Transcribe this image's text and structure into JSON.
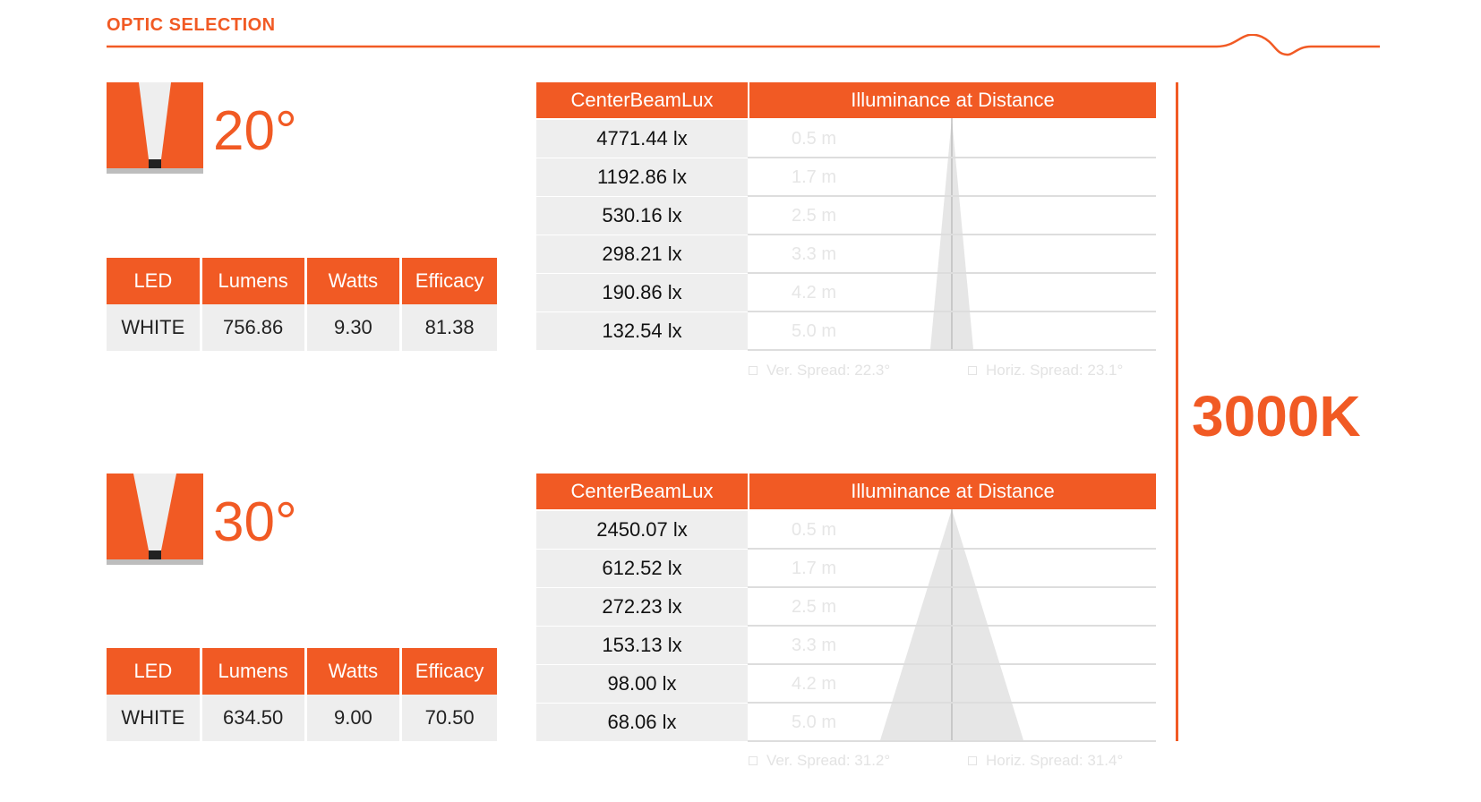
{
  "page_title": "OPTIC SELECTION",
  "cct": "3000K",
  "accent_color": "#f15a24",
  "optics": [
    {
      "beam_angle": "20°",
      "spec": {
        "headers": [
          "LED",
          "Lumens",
          "Watts",
          "Efficacy"
        ],
        "row": [
          "WHITE",
          "756.86",
          "9.30",
          "81.38"
        ]
      },
      "lux_header": "CenterBeamLux",
      "dist_header": "Illuminance at Distance",
      "rows": [
        {
          "lux": "4771.44 lx",
          "distance": "0.5 m"
        },
        {
          "lux": "1192.86 lx",
          "distance": "1.7 m"
        },
        {
          "lux": "530.16 lx",
          "distance": "2.5 m"
        },
        {
          "lux": "298.21 lx",
          "distance": "3.3 m"
        },
        {
          "lux": "190.86  lx",
          "distance": "4.2 m"
        },
        {
          "lux": "132.54 lx",
          "distance": "5.0 m"
        }
      ],
      "ver_spread": "Ver. Spread: 22.3°",
      "horiz_spread": "Horiz. Spread: 23.1°"
    },
    {
      "beam_angle": "30°",
      "spec": {
        "headers": [
          "LED",
          "Lumens",
          "Watts",
          "Efficacy"
        ],
        "row": [
          "WHITE",
          "634.50",
          "9.00",
          "70.50"
        ]
      },
      "lux_header": "CenterBeamLux",
      "dist_header": "Illuminance at Distance",
      "rows": [
        {
          "lux": "2450.07 lx",
          "distance": "0.5 m"
        },
        {
          "lux": "612.52 lx",
          "distance": "1.7 m"
        },
        {
          "lux": "272.23 lx",
          "distance": "2.5 m"
        },
        {
          "lux": "153.13 lx",
          "distance": "3.3 m"
        },
        {
          "lux": "98.00 lx",
          "distance": "4.2 m"
        },
        {
          "lux": "68.06 lx",
          "distance": "5.0 m"
        }
      ],
      "ver_spread": "Ver. Spread: 31.2°",
      "horiz_spread": "Horiz. Spread: 31.4°"
    }
  ]
}
